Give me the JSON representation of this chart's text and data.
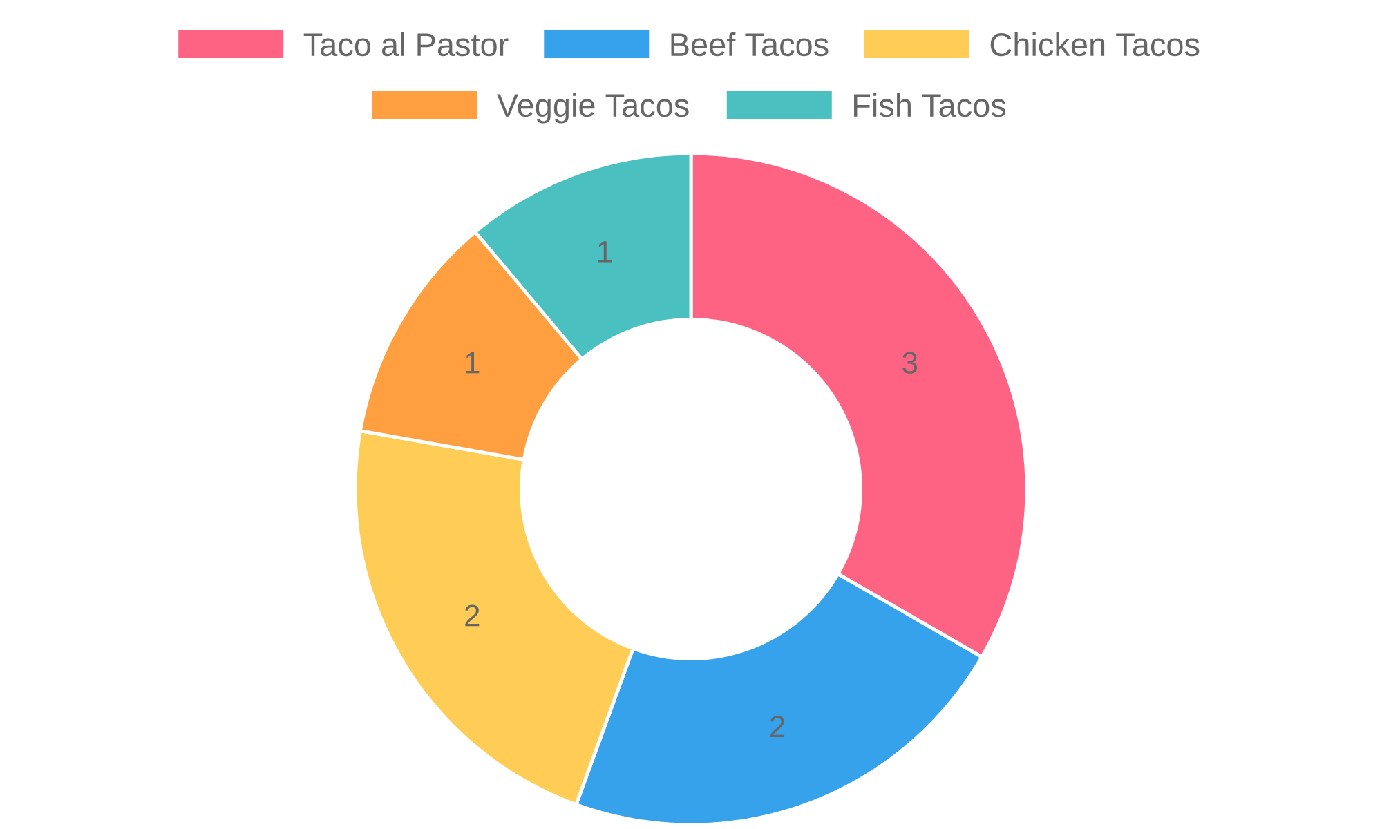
{
  "chart_data": {
    "type": "donut",
    "categories": [
      "Taco al Pastor",
      "Beef Tacos",
      "Chicken Tacos",
      "Veggie Tacos",
      "Fish Tacos"
    ],
    "values": [
      3,
      2,
      2,
      1,
      1
    ],
    "colors": [
      "#ff6384",
      "#36a2eb",
      "#ffcd56",
      "#ff9f40",
      "#4bc0c0"
    ],
    "legend": "top",
    "data_labels": true
  }
}
